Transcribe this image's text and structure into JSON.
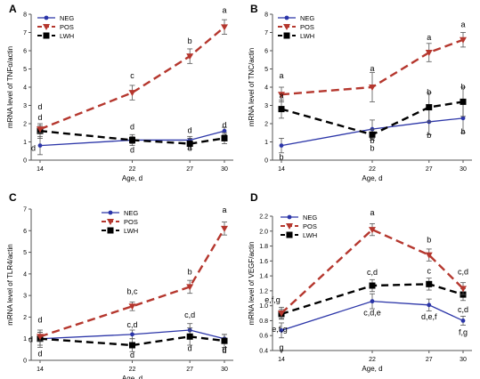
{
  "colors": {
    "NEG": "#2b35a8",
    "POS": "#b5372e",
    "LWH": "#000000"
  },
  "chart_data": [
    {
      "panel": "A",
      "type": "line",
      "ylabel": "mRNA level of TNFα/actin",
      "xlabel": "Age, d",
      "x": [
        14,
        22,
        27,
        30
      ],
      "xticks": [
        "14",
        "22",
        "27",
        "30"
      ],
      "ylim": [
        0,
        8
      ],
      "yticks": [
        "0",
        "1",
        "2",
        "3",
        "4",
        "5",
        "6",
        "7",
        "8"
      ],
      "legend": "top-left",
      "series": [
        {
          "name": "NEG",
          "values": [
            0.8,
            1.1,
            1.1,
            1.6
          ],
          "error": [
            0.5,
            0.2,
            0.2,
            0.2
          ],
          "letters": [
            "d",
            "d",
            "d",
            "d"
          ]
        },
        {
          "name": "POS",
          "values": [
            1.7,
            3.7,
            5.7,
            7.3
          ],
          "error": [
            0.2,
            0.4,
            0.4,
            0.4
          ],
          "letters": [
            "d",
            "c",
            "b",
            "a"
          ]
        },
        {
          "name": "LWH",
          "values": [
            1.6,
            1.1,
            0.9,
            1.2
          ],
          "error": [
            0.4,
            0.3,
            0.3,
            0.3
          ],
          "letters": [
            "d",
            "d",
            "d",
            "d"
          ]
        }
      ]
    },
    {
      "panel": "B",
      "type": "line",
      "ylabel": "mRNA level of TNC/actin",
      "xlabel": "Age, d",
      "x": [
        14,
        22,
        27,
        30
      ],
      "xticks": [
        "14",
        "22",
        "27",
        "30"
      ],
      "ylim": [
        0,
        8
      ],
      "yticks": [
        "0",
        "1",
        "2",
        "3",
        "4",
        "5",
        "6",
        "7",
        "8"
      ],
      "legend": "top-left",
      "series": [
        {
          "name": "NEG",
          "values": [
            0.8,
            1.7,
            2.1,
            2.3
          ],
          "error": [
            0.4,
            0.5,
            0.7,
            0.8
          ],
          "letters": [
            "b",
            "b",
            "b",
            "b"
          ]
        },
        {
          "name": "POS",
          "values": [
            3.6,
            4.0,
            5.9,
            6.6
          ],
          "error": [
            0.4,
            0.8,
            0.5,
            0.4
          ],
          "letters": [
            "a",
            "a",
            "a",
            "a"
          ]
        },
        {
          "name": "LWH",
          "values": [
            2.8,
            1.4,
            2.9,
            3.2
          ],
          "error": [
            0.5,
            0.3,
            0.8,
            0.8
          ],
          "letters": [
            "a",
            "b",
            "b",
            "b"
          ]
        }
      ]
    },
    {
      "panel": "C",
      "type": "line",
      "ylabel": "mRNA level of TLR4/actin",
      "xlabel": "Age, d",
      "x": [
        14,
        22,
        27,
        30
      ],
      "xticks": [
        "14",
        "22",
        "27",
        "30"
      ],
      "ylim": [
        0,
        7
      ],
      "yticks": [
        "0",
        "1",
        "2",
        "3",
        "4",
        "5",
        "6",
        "7"
      ],
      "legend": "top-center",
      "series": [
        {
          "name": "NEG",
          "values": [
            1.0,
            1.2,
            1.4,
            1.0
          ],
          "error": [
            0.3,
            0.2,
            0.3,
            0.2
          ],
          "letters": [
            "d",
            "c,d",
            "c,d",
            "d"
          ]
        },
        {
          "name": "POS",
          "values": [
            1.1,
            2.5,
            3.4,
            6.1
          ],
          "error": [
            0.2,
            0.2,
            0.3,
            0.3
          ],
          "letters": [
            "d",
            "b,c",
            "b",
            "a"
          ]
        },
        {
          "name": "LWH",
          "values": [
            1.0,
            0.7,
            1.1,
            0.9
          ],
          "error": [
            0.4,
            0.3,
            0.4,
            0.3
          ],
          "letters": [
            "d",
            "d",
            "d",
            "d"
          ]
        }
      ]
    },
    {
      "panel": "D",
      "type": "line",
      "ylabel": "mRNA level of VEGF/actin",
      "xlabel": "Age, d",
      "x": [
        14,
        22,
        27,
        30
      ],
      "xticks": [
        "14",
        "22",
        "27",
        "30"
      ],
      "ylim": [
        0.4,
        2.2
      ],
      "yticks": [
        "0.4",
        "0.6",
        "0.8",
        "1.0",
        "1.2",
        "1.4",
        "1.6",
        "1.8",
        "2.0",
        "2.2"
      ],
      "legend": "top-left",
      "series": [
        {
          "name": "NEG",
          "values": [
            0.67,
            1.06,
            1.01,
            0.8
          ],
          "error": [
            0.1,
            0.1,
            0.08,
            0.06
          ],
          "letters": [
            "g",
            "c,d,e",
            "d,e,f",
            "f,g"
          ]
        },
        {
          "name": "POS",
          "values": [
            0.9,
            2.02,
            1.68,
            1.23
          ],
          "error": [
            0.08,
            0.08,
            0.08,
            0.08
          ],
          "letters": [
            "e,f,g",
            "a",
            "b",
            "c,d"
          ]
        },
        {
          "name": "LWH",
          "values": [
            0.89,
            1.27,
            1.29,
            1.15
          ],
          "error": [
            0.06,
            0.08,
            0.08,
            0.08
          ],
          "letters": [
            "e,f,g",
            "c,d",
            "c",
            "c,d"
          ]
        }
      ]
    }
  ]
}
